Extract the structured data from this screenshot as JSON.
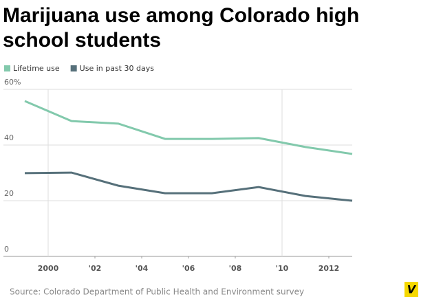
{
  "chart_data": {
    "type": "line",
    "title": "Marijuana use among Colorado high school students",
    "x": [
      1999,
      2001,
      2003,
      2005,
      2007,
      2009,
      2011,
      2013
    ],
    "series": [
      {
        "name": "Lifetime use",
        "color": "#82c9ac",
        "values": [
          55.8,
          48.6,
          47.7,
          42.2,
          42.2,
          42.5,
          39.3,
          36.8
        ]
      },
      {
        "name": "Use in past 30 days",
        "color": "#56707a",
        "values": [
          29.9,
          30.1,
          25.4,
          22.7,
          22.7,
          24.9,
          21.7,
          20.0
        ]
      }
    ],
    "xlim": [
      1999,
      2013
    ],
    "xticks": [
      2000,
      {
        "value": 2002,
        "label": "'02"
      },
      {
        "value": 2004,
        "label": "'04"
      },
      {
        "value": 2006,
        "label": "'06"
      },
      {
        "value": 2008,
        "label": "'08"
      },
      {
        "value": 2010,
        "label": "'10"
      },
      2012
    ],
    "ylim": [
      0,
      60
    ],
    "yticks": [
      0,
      20,
      40,
      {
        "value": 60,
        "label": "60%"
      }
    ],
    "grid": true,
    "source": "Source: Colorado Department of Public Health and Environment survey",
    "logo": "V"
  }
}
